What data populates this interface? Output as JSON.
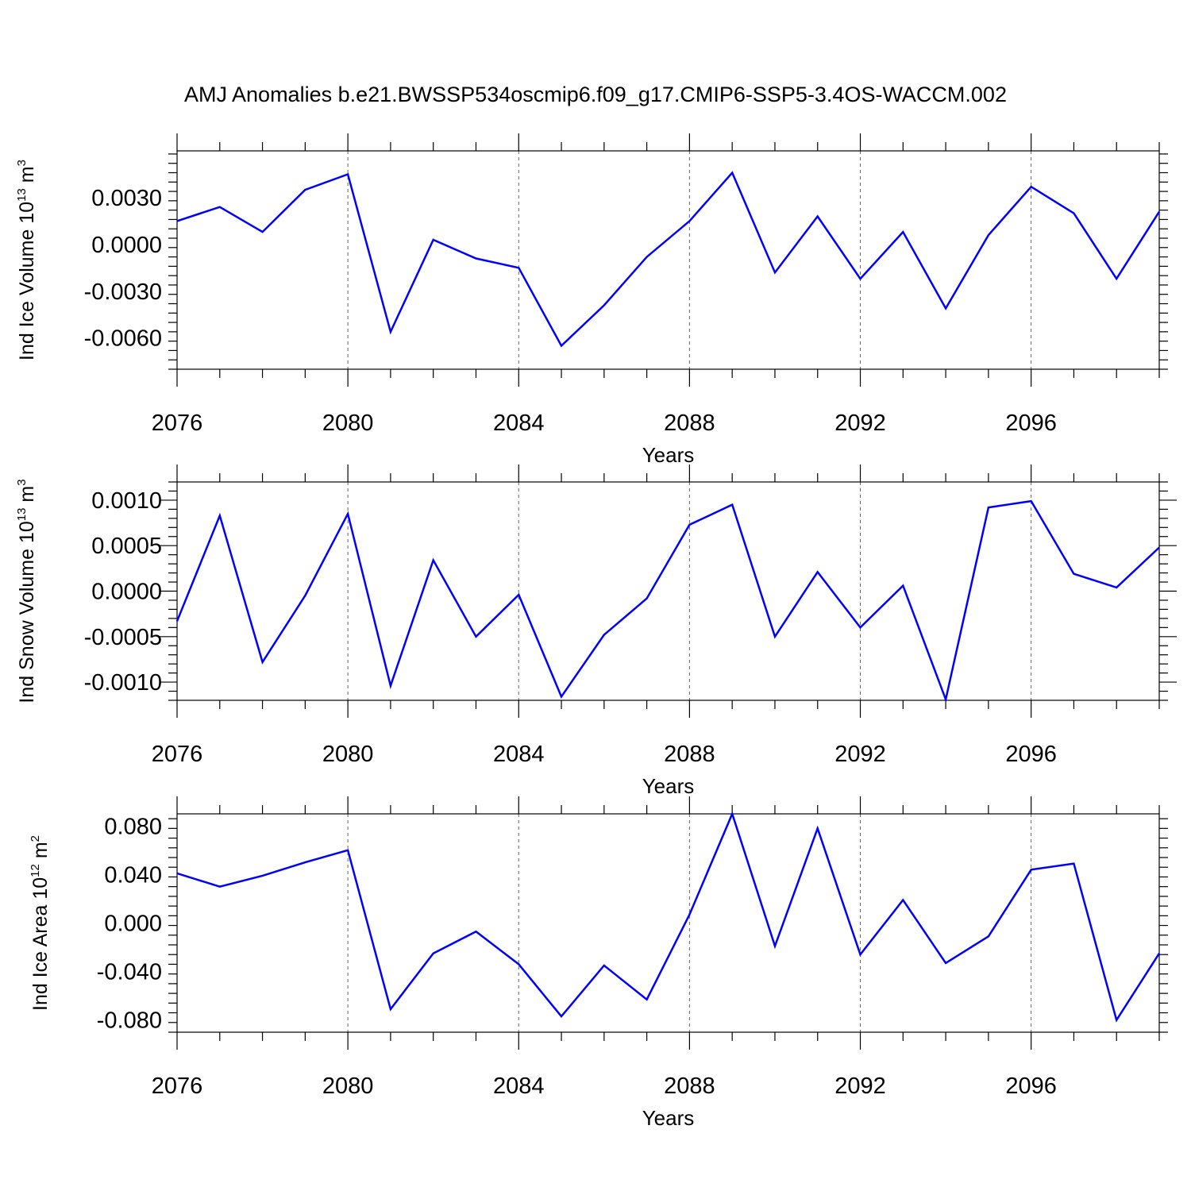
{
  "figure_title": "AMJ Anomalies b.e21.BWSSP534oscmip6.f09_g17.CMIP6-SSP5-3.4OS-WACCM.002",
  "line_color": "#0000ff",
  "chart_data": [
    {
      "type": "line",
      "title": "",
      "xlabel": "Years",
      "ylabel": "Ind Ice Volume",
      "yunit_base": "10",
      "yunit_exp": "13",
      "yunit_tail": "m",
      "yunit_tail_exp": "3",
      "xlim": [
        2076,
        2099
      ],
      "ylim": [
        -0.008,
        0.006
      ],
      "xticks": [
        "2076",
        "2080",
        "2084",
        "2088",
        "2092",
        "2096"
      ],
      "yticks": [
        "0.0030",
        "0.0000",
        "-0.0030",
        "-0.0060"
      ],
      "grid": "vertical dashed at major x ticks",
      "x": [
        2076,
        2077,
        2078,
        2079,
        2080,
        2081,
        2082,
        2083,
        2084,
        2085,
        2086,
        2087,
        2088,
        2089,
        2090,
        2091,
        2092,
        2093,
        2094,
        2095,
        2096,
        2097,
        2098,
        2099
      ],
      "values": [
        0.0015,
        0.0024,
        0.0008,
        0.0035,
        0.0045,
        -0.0056,
        0.0003,
        -0.0009,
        -0.0015,
        -0.0065,
        -0.0039,
        -0.0008,
        0.0015,
        0.0046,
        -0.0018,
        0.0018,
        -0.0022,
        0.0008,
        -0.0041,
        0.0006,
        0.0037,
        0.002,
        -0.0022,
        0.0021
      ]
    },
    {
      "type": "line",
      "title": "",
      "xlabel": "Years",
      "ylabel": "Ind Snow Volume",
      "yunit_base": "10",
      "yunit_exp": "13",
      "yunit_tail": "m",
      "yunit_tail_exp": "3",
      "xlim": [
        2076,
        2099
      ],
      "ylim": [
        -0.0012,
        0.0012
      ],
      "xticks": [
        "2076",
        "2080",
        "2084",
        "2088",
        "2092",
        "2096"
      ],
      "yticks": [
        "0.0010",
        "0.0005",
        "0.0000",
        "-0.0005",
        "-0.0010"
      ],
      "grid": "vertical dashed at major x ticks",
      "x": [
        2076,
        2077,
        2078,
        2079,
        2080,
        2081,
        2082,
        2083,
        2084,
        2085,
        2086,
        2087,
        2088,
        2089,
        2090,
        2091,
        2092,
        2093,
        2094,
        2095,
        2096,
        2097,
        2098,
        2099
      ],
      "values": [
        -0.00033,
        0.00083,
        -0.00078,
        -5e-05,
        0.00085,
        -0.00104,
        0.00034,
        -0.0005,
        -4e-05,
        -0.00116,
        -0.00048,
        -8e-05,
        0.00073,
        0.00095,
        -0.0005,
        0.00021,
        -0.0004,
        6e-05,
        -0.00119,
        0.00092,
        0.00099,
        0.00019,
        4e-05,
        0.00048
      ]
    },
    {
      "type": "line",
      "title": "",
      "xlabel": "Years",
      "ylabel": "Ind Ice Area",
      "yunit_base": "10",
      "yunit_exp": "12",
      "yunit_tail": "m",
      "yunit_tail_exp": "2",
      "xlim": [
        2076,
        2099
      ],
      "ylim": [
        -0.09,
        0.09
      ],
      "xticks": [
        "2076",
        "2080",
        "2084",
        "2088",
        "2092",
        "2096"
      ],
      "yticks": [
        "0.080",
        "0.040",
        "0.000",
        "-0.040",
        "-0.080"
      ],
      "grid": "vertical dashed at major x ticks",
      "x": [
        2076,
        2077,
        2078,
        2079,
        2080,
        2081,
        2082,
        2083,
        2084,
        2085,
        2086,
        2087,
        2088,
        2089,
        2090,
        2091,
        2092,
        2093,
        2094,
        2095,
        2096,
        2097,
        2098,
        2099
      ],
      "values": [
        0.041,
        0.03,
        0.039,
        0.05,
        0.06,
        -0.071,
        -0.025,
        -0.007,
        -0.034,
        -0.077,
        -0.035,
        -0.063,
        0.007,
        0.09,
        -0.019,
        0.078,
        -0.026,
        0.019,
        -0.033,
        -0.011,
        0.044,
        0.049,
        -0.08,
        -0.025
      ]
    }
  ]
}
